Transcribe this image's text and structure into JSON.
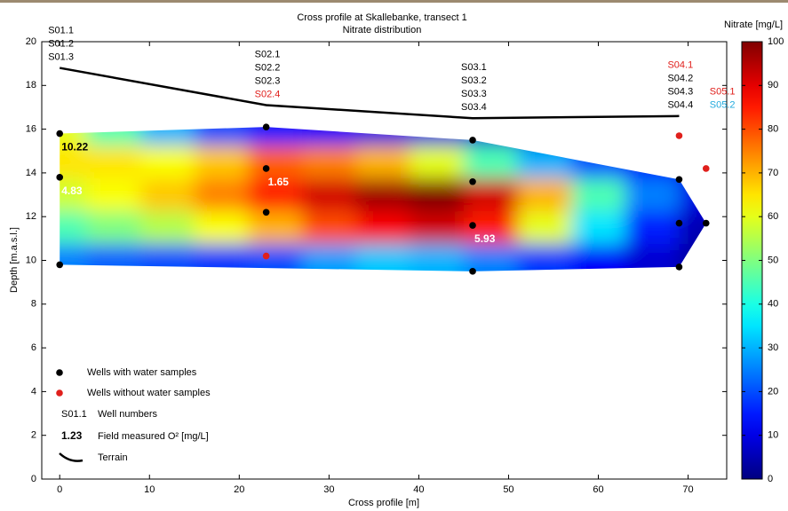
{
  "chart_data": {
    "type": "contour",
    "title": "Cross profile at Skallebanke, transect 1",
    "subtitle": "Nitrate distribution",
    "x_label": "Cross profile [m]",
    "y_label": "Depth [m.a.s.l.]",
    "xlim": [
      -2,
      74.3
    ],
    "xticks": [
      0,
      10,
      20,
      30,
      40,
      50,
      60,
      70
    ],
    "ylim": [
      0,
      20
    ],
    "yticks": [
      0,
      2,
      4,
      6,
      8,
      10,
      12,
      14,
      16,
      18,
      20
    ],
    "colorbar": {
      "label": "Nitrate [mg/L]",
      "lim": [
        0,
        100
      ],
      "ticks": [
        0,
        10,
        20,
        30,
        40,
        50,
        60,
        70,
        80,
        90,
        100
      ],
      "colormap": "jet"
    },
    "field": {
      "x": [
        0,
        6,
        12,
        18,
        24,
        30,
        36,
        42,
        48,
        54,
        60,
        66,
        72
      ],
      "y": [
        16,
        14.5,
        13,
        11.5,
        10
      ],
      "values": [
        [
          60,
          45,
          30,
          20,
          15,
          12,
          10,
          10,
          8,
          6,
          5,
          5,
          5
        ],
        [
          65,
          65,
          62,
          68,
          78,
          75,
          70,
          60,
          45,
          30,
          20,
          12,
          8
        ],
        [
          58,
          62,
          68,
          75,
          85,
          92,
          97,
          100,
          92,
          70,
          45,
          25,
          10
        ],
        [
          45,
          50,
          55,
          62,
          70,
          80,
          88,
          92,
          85,
          60,
          35,
          15,
          5
        ],
        [
          25,
          22,
          20,
          18,
          20,
          28,
          32,
          30,
          25,
          18,
          12,
          8,
          3
        ]
      ]
    },
    "series": [
      {
        "name": "Wells with water samples",
        "color": "#000000",
        "x": [
          0,
          0,
          0,
          23,
          23,
          23,
          46,
          46,
          46,
          46,
          69,
          69,
          69,
          72
        ],
        "y": [
          15.8,
          13.8,
          9.8,
          16.1,
          14.2,
          12.2,
          15.5,
          13.6,
          11.6,
          9.5,
          13.7,
          11.7,
          9.7,
          11.7
        ]
      },
      {
        "name": "Wells without water samples",
        "color": "#e0201c",
        "x": [
          23,
          69,
          72
        ],
        "y": [
          10.2,
          15.7,
          14.2
        ]
      },
      {
        "name": "Terrain",
        "color": "#000000",
        "x": [
          0,
          23,
          46,
          69
        ],
        "y": [
          18.8,
          17.1,
          16.5,
          16.6
        ]
      }
    ],
    "well_labels": [
      {
        "x": 0,
        "lines": [
          {
            "text": "S01.1",
            "color": "#000000"
          },
          {
            "text": "S01.2",
            "color": "#000000"
          },
          {
            "text": "S01.3",
            "color": "#000000"
          }
        ]
      },
      {
        "x": 23,
        "lines": [
          {
            "text": "S02.1",
            "color": "#000000"
          },
          {
            "text": "S02.2",
            "color": "#000000"
          },
          {
            "text": "S02.3",
            "color": "#000000"
          },
          {
            "text": "S02.4",
            "color": "#e0201c"
          }
        ]
      },
      {
        "x": 46,
        "lines": [
          {
            "text": "S03.1",
            "color": "#000000"
          },
          {
            "text": "S03.2",
            "color": "#000000"
          },
          {
            "text": "S03.3",
            "color": "#000000"
          },
          {
            "text": "S03.4",
            "color": "#000000"
          }
        ]
      },
      {
        "x": 69,
        "lines": [
          {
            "text": "S04.1",
            "color": "#e0201c"
          },
          {
            "text": "S04.2",
            "color": "#000000"
          },
          {
            "text": "S04.3",
            "color": "#000000"
          },
          {
            "text": "S04.4",
            "color": "#000000"
          }
        ]
      },
      {
        "x": 72,
        "lines": [
          {
            "text": "S05.1",
            "color": "#e0201c"
          },
          {
            "text": "S05.2",
            "color": "#22aadd"
          }
        ]
      }
    ],
    "o2_labels": [
      {
        "x": 0,
        "y": 15.8,
        "value": 10.22,
        "color": "#000000"
      },
      {
        "x": 0,
        "y": 13.8,
        "value": 4.83,
        "color": "#ffffff"
      },
      {
        "x": 23,
        "y": 14.2,
        "value": 1.65,
        "color": "#ffffff"
      },
      {
        "x": 46,
        "y": 11.6,
        "value": 5.93,
        "color": "#ffffff"
      }
    ],
    "legend_examples": {
      "well_number": {
        "sample": "S01.1",
        "label": "Well numbers"
      },
      "o2": {
        "sample": 1.23,
        "label": "Field measured O² [mg/L]"
      }
    }
  }
}
